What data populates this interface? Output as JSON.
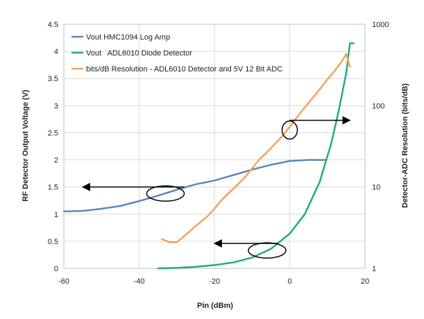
{
  "chart_data": {
    "type": "line",
    "xlabel": "Pin (dBm)",
    "ylabel": "RF Detector Output Voltage (V)",
    "y2label": "Detector-ADC Resolution (bits/dB)",
    "xlim": [
      -60,
      20
    ],
    "ylim": [
      0,
      4.5
    ],
    "y2lim": [
      1,
      1000
    ],
    "y2scale": "log",
    "x_ticks": [
      "-60",
      "-40",
      "-20",
      "0",
      "20"
    ],
    "y_ticks": [
      "0",
      "0.5",
      "1",
      "1.5",
      "2",
      "2.5",
      "3",
      "3.5",
      "4",
      "4.5"
    ],
    "y2_ticks": [
      "1",
      "10",
      "100",
      "1000"
    ],
    "grid": true,
    "legend_position": "top-left",
    "series": [
      {
        "name": "Vout HMC1094 Log Amp",
        "axis": "left",
        "color": "#5b87be",
        "x": [
          -60,
          -55,
          -50,
          -45,
          -40,
          -35,
          -30,
          -25,
          -20,
          -15,
          -10,
          -5,
          0,
          5,
          9.5
        ],
        "y": [
          1.05,
          1.06,
          1.1,
          1.15,
          1.24,
          1.34,
          1.45,
          1.55,
          1.62,
          1.72,
          1.82,
          1.91,
          1.98,
          2.0,
          2.0
        ]
      },
      {
        "name": "Vout   ADL6010 Diode Detector",
        "axis": "left",
        "color": "#1fb16c",
        "x": [
          -35,
          -30,
          -25,
          -20,
          -15,
          -10,
          -5,
          0,
          4,
          8,
          11,
          13,
          15,
          16,
          17
        ],
        "y": [
          0.0,
          0.01,
          0.03,
          0.06,
          0.11,
          0.2,
          0.36,
          0.64,
          1.0,
          1.6,
          2.3,
          2.9,
          3.6,
          4.15,
          4.15
        ]
      },
      {
        "name": "bits/dB Resolution - ADL6010 Detector and 5V 12 Bit ADC",
        "axis": "right",
        "color": "#f5a25d",
        "x": [
          -34,
          -32,
          -30,
          -28,
          -25,
          -22,
          -20,
          -18,
          -15,
          -12,
          -10,
          -8,
          -5,
          -2,
          0,
          2,
          4,
          6,
          8,
          10,
          12,
          14,
          15,
          16
        ],
        "y": [
          2.3,
          2.1,
          2.1,
          2.5,
          3.3,
          4.3,
          5.4,
          7.0,
          9.5,
          13,
          17,
          22,
          30,
          42,
          55,
          73,
          95,
          123,
          160,
          210,
          270,
          360,
          430,
          300
        ]
      }
    ],
    "annotations": [
      {
        "type": "arrow-left",
        "from_x": -28,
        "to_x": -55,
        "y": 1.5
      },
      {
        "type": "ellipse",
        "cx": -33,
        "cy": 1.38
      },
      {
        "type": "arrow-left",
        "from_x": -3,
        "to_x": -20,
        "y": 0.46
      },
      {
        "type": "ellipse",
        "cx": -6,
        "cy": 0.33
      },
      {
        "type": "arrow-right",
        "from_x": 0,
        "to_x": 16,
        "y": 2.73
      },
      {
        "type": "ellipse",
        "cx": 0,
        "cy": 2.55
      }
    ]
  }
}
